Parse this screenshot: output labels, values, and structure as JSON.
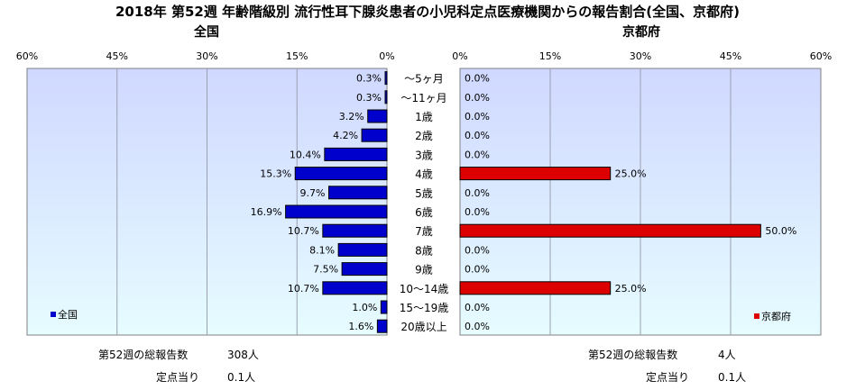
{
  "title": "2018年 第52週 年齢階級別 流行性耳下腺炎患者の小児科定点医療機関からの報告割合(全国、京都府)",
  "colors": {
    "national": "#0000cc",
    "kyoto": "#dd0000",
    "plot_top": "#d0d8ff",
    "plot_bottom": "#e6fcff"
  },
  "chart_data": [
    {
      "type": "bar",
      "orientation": "horizontal",
      "direction": "right-to-left",
      "title": "全国",
      "categories": [
        "～5ヶ月",
        "～11ヶ月",
        "1歳",
        "2歳",
        "3歳",
        "4歳",
        "5歳",
        "6歳",
        "7歳",
        "8歳",
        "9歳",
        "10～14歳",
        "15～19歳",
        "20歳以上"
      ],
      "series": [
        {
          "name": "全国",
          "values": [
            0.3,
            0.3,
            3.2,
            4.2,
            10.4,
            15.3,
            9.7,
            16.9,
            10.7,
            8.1,
            7.5,
            10.7,
            1.0,
            1.6
          ],
          "labels": [
            "0.3%",
            "0.3%",
            "3.2%",
            "4.2%",
            "10.4%",
            "15.3%",
            "9.7%",
            "16.9%",
            "10.7%",
            "8.1%",
            "7.5%",
            "10.7%",
            "1.0%",
            "1.6%"
          ]
        }
      ],
      "xlim": [
        0,
        60
      ],
      "ticks": [
        60,
        45,
        30,
        15,
        0
      ],
      "tick_labels": [
        "60%",
        "45%",
        "30%",
        "15%",
        "0%"
      ],
      "grid": true,
      "legend": "bottom-left"
    },
    {
      "type": "bar",
      "orientation": "horizontal",
      "direction": "left-to-right",
      "title": "京都府",
      "categories": [
        "～5ヶ月",
        "～11ヶ月",
        "1歳",
        "2歳",
        "3歳",
        "4歳",
        "5歳",
        "6歳",
        "7歳",
        "8歳",
        "9歳",
        "10～14歳",
        "15～19歳",
        "20歳以上"
      ],
      "series": [
        {
          "name": "京都府",
          "values": [
            0.0,
            0.0,
            0.0,
            0.0,
            0.0,
            25.0,
            0.0,
            0.0,
            50.0,
            0.0,
            0.0,
            25.0,
            0.0,
            0.0
          ],
          "labels": [
            "0.0%",
            "0.0%",
            "0.0%",
            "0.0%",
            "0.0%",
            "25.0%",
            "0.0%",
            "0.0%",
            "50.0%",
            "0.0%",
            "0.0%",
            "25.0%",
            "0.0%",
            "0.0%"
          ]
        }
      ],
      "xlim": [
        0,
        60
      ],
      "ticks": [
        0,
        15,
        30,
        45,
        60
      ],
      "tick_labels": [
        "0%",
        "15%",
        "30%",
        "45%",
        "60%"
      ],
      "grid": true,
      "legend": "bottom-right"
    }
  ],
  "footer": {
    "left": {
      "total_label": "第52週の総報告数",
      "total_value": "308人",
      "per_label": "定点当り",
      "per_value": "0.1人"
    },
    "right": {
      "total_label": "第52週の総報告数",
      "total_value": "4人",
      "per_label": "定点当り",
      "per_value": "0.1人"
    }
  }
}
